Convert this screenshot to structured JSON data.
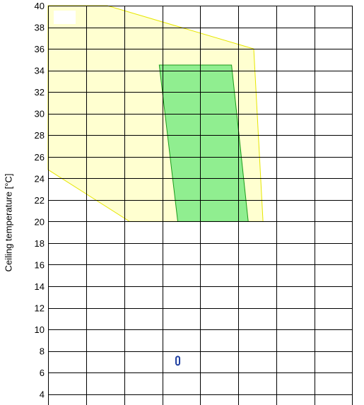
{
  "chart_data": {
    "type": "scatter",
    "title": "",
    "xlabel": "",
    "ylabel": "Ceiling temperature [°C]",
    "ylim": [
      3,
      40
    ],
    "xlim": [
      0,
      8.2
    ],
    "y_ticks": [
      "4",
      "6",
      "8",
      "10",
      "12",
      "14",
      "16",
      "18",
      "20",
      "22",
      "24",
      "26",
      "28",
      "30",
      "32",
      "34",
      "36",
      "38",
      "40"
    ],
    "grid": true,
    "legend": "none",
    "regions": [
      {
        "fill": "#FFFFD0",
        "stroke": "#E6E600",
        "points": [
          [
            0,
            24.8
          ],
          [
            0,
            40
          ],
          [
            1.6,
            40
          ],
          [
            5.55,
            36
          ],
          [
            5.8,
            20
          ],
          [
            2.2,
            20
          ]
        ]
      },
      {
        "fill": "#90EE90",
        "stroke": "#1A9A1A",
        "points": [
          [
            3.0,
            34.5
          ],
          [
            4.95,
            34.5
          ],
          [
            5.4,
            20
          ],
          [
            3.5,
            20
          ]
        ]
      }
    ],
    "points": [
      {
        "x": 3.5,
        "y": 7.1,
        "color": "#1F3FA0"
      }
    ]
  }
}
